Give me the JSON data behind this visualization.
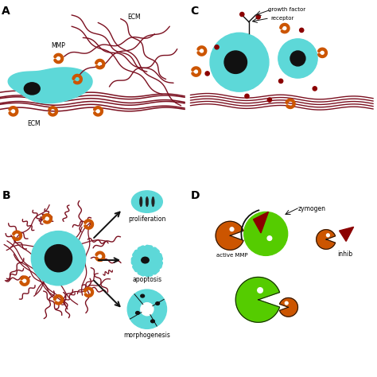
{
  "bg_color": "#ffffff",
  "cyan": "#5DD8D8",
  "orange": "#CC5500",
  "dark_maroon": "#7B1020",
  "green": "#55CC00",
  "black": "#111111",
  "white": "#ffffff",
  "darkred": "#8B0000",
  "label_A": "A",
  "label_B": "B",
  "label_C": "C",
  "label_D": "D",
  "text_MMP": "MMP",
  "text_ECM_top": "ECM",
  "text_ECM_bottom": "ECM",
  "text_proliferation": "proliferation",
  "text_apoptosis": "apoptosis",
  "text_morphogenesis": "morphogenesis",
  "text_zymogen": "zymogen",
  "text_active_MMP": "active MMP",
  "text_inhibitor": "inhib",
  "text_growth_factor": "growth factor",
  "text_receptor": "receptor"
}
